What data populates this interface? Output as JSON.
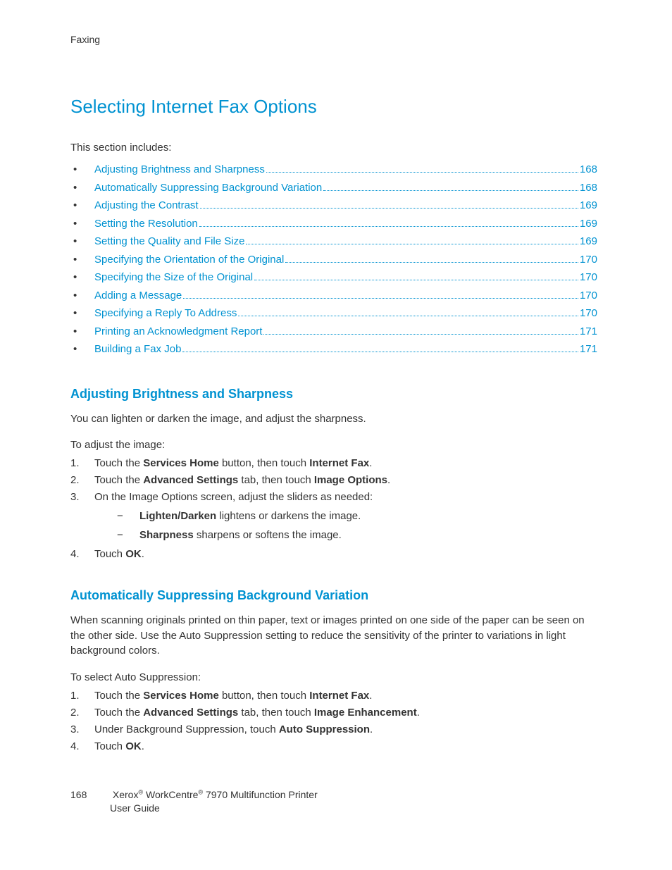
{
  "colors": {
    "link": "#0092d1",
    "text": "#333333",
    "bg": "#ffffff"
  },
  "header": {
    "running": "Faxing"
  },
  "title": "Selecting Internet Fax Options",
  "intro": "This section includes:",
  "toc": [
    {
      "label": "Adjusting Brightness and Sharpness",
      "page": "168"
    },
    {
      "label": "Automatically Suppressing Background Variation",
      "page": "168"
    },
    {
      "label": "Adjusting the Contrast",
      "page": "169"
    },
    {
      "label": "Setting the Resolution",
      "page": "169"
    },
    {
      "label": "Setting the Quality and File Size",
      "page": "169"
    },
    {
      "label": "Specifying the Orientation of the Original",
      "page": "170"
    },
    {
      "label": "Specifying the Size of the Original",
      "page": "170"
    },
    {
      "label": "Adding a Message",
      "page": "170"
    },
    {
      "label": "Specifying a Reply To Address",
      "page": "170"
    },
    {
      "label": "Printing an Acknowledgment Report",
      "page": "171"
    },
    {
      "label": "Building a Fax Job",
      "page": "171"
    }
  ],
  "sec1": {
    "heading": "Adjusting Brightness and Sharpness",
    "para": "You can lighten or darken the image, and adjust the sharpness.",
    "lead": "To adjust the image:",
    "steps": {
      "s1_pre": "Touch the ",
      "s1_b1": "Services Home",
      "s1_mid": " button, then touch ",
      "s1_b2": "Internet Fax",
      "s1_post": ".",
      "s2_pre": "Touch the ",
      "s2_b1": "Advanced Settings",
      "s2_mid": " tab, then touch ",
      "s2_b2": "Image Options",
      "s2_post": ".",
      "s3": "On the Image Options screen, adjust the sliders as needed:",
      "s3a_b": "Lighten/Darken",
      "s3a_t": " lightens or darkens the image.",
      "s3b_b": "Sharpness",
      "s3b_t": " sharpens or softens the image.",
      "s4_pre": "Touch ",
      "s4_b": "OK",
      "s4_post": "."
    }
  },
  "sec2": {
    "heading": "Automatically Suppressing Background Variation",
    "para": "When scanning originals printed on thin paper, text or images printed on one side of the paper can be seen on the other side. Use the Auto Suppression setting to reduce the sensitivity of the printer to variations in light background colors.",
    "lead": "To select Auto Suppression:",
    "steps": {
      "s1_pre": "Touch the ",
      "s1_b1": "Services Home",
      "s1_mid": " button, then touch ",
      "s1_b2": "Internet Fax",
      "s1_post": ".",
      "s2_pre": "Touch the ",
      "s2_b1": "Advanced Settings",
      "s2_mid": " tab, then touch ",
      "s2_b2": "Image Enhancement",
      "s2_post": ".",
      "s3_pre": "Under Background Suppression, touch ",
      "s3_b": "Auto Suppression",
      "s3_post": ".",
      "s4_pre": "Touch ",
      "s4_b": "OK",
      "s4_post": "."
    }
  },
  "footer": {
    "page": "168",
    "brand1": "Xerox",
    "reg1": "®",
    "mid": " WorkCentre",
    "reg2": "®",
    "tail": " 7970 Multifunction Printer",
    "line2": "User Guide"
  }
}
